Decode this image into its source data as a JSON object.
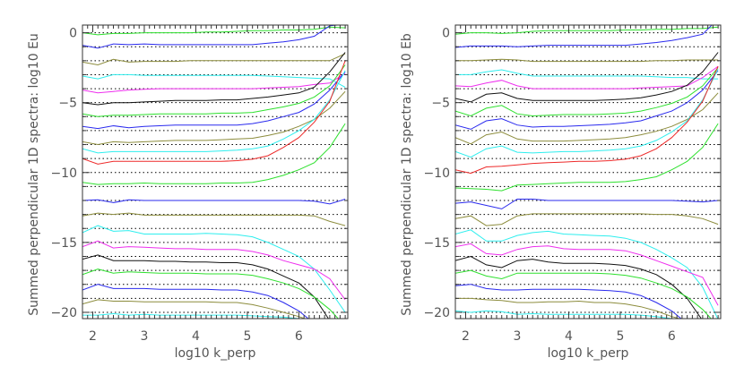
{
  "colors": {
    "green": "#2ee02e",
    "blue": "#2a2aee",
    "olive": "#8c8c3c",
    "cyan": "#2eeeee",
    "magenta": "#ee2eee",
    "black": "#111111",
    "red": "#ee2a2a"
  },
  "chart_data": [
    {
      "type": "line",
      "xlabel": "log10 k_perp",
      "ylabel": "Summed perpendicular 1D spectra: log10 Eu",
      "xlim": [
        1.8,
        6.95
      ],
      "ylim": [
        -20.45,
        0.55
      ],
      "xticks": [
        2,
        3,
        4,
        5,
        6
      ],
      "yticks": [
        0,
        -5,
        -10,
        -15,
        -20
      ],
      "grid": "dotted horizontal at every integer",
      "x": [
        1.8,
        2.1,
        2.4,
        2.7,
        3.0,
        3.3,
        3.6,
        3.9,
        4.2,
        4.5,
        4.8,
        5.1,
        5.4,
        5.7,
        6.0,
        6.3,
        6.6,
        6.9
      ],
      "series": [
        {
          "color": "green",
          "values": [
            0,
            -0.15,
            -0.05,
            -0.05,
            0,
            0,
            0,
            0,
            0.05,
            0.05,
            0.1,
            0.15,
            0.15,
            0.2,
            0.2,
            0.25,
            0.4,
            0.35
          ]
        },
        {
          "color": "blue",
          "values": [
            -0.9,
            -1.1,
            -0.8,
            -0.85,
            -0.8,
            -0.85,
            -0.85,
            -0.85,
            -0.85,
            -0.85,
            -0.85,
            -0.85,
            -0.75,
            -0.65,
            -0.5,
            -0.25,
            0.5,
            0.6
          ]
        },
        {
          "color": "olive",
          "values": [
            -2.1,
            -2.3,
            -1.9,
            -2.1,
            -2.05,
            -2.05,
            -2.05,
            -2,
            -2,
            -2,
            -2,
            -2,
            -2,
            -2,
            -2,
            -2,
            -2,
            -1.5
          ]
        },
        {
          "color": "cyan",
          "values": [
            -3.1,
            -3.3,
            -3,
            -3,
            -3.05,
            -3.05,
            -3.05,
            -3.05,
            -3.05,
            -3.05,
            -3.05,
            -3.05,
            -3.1,
            -3.15,
            -3.2,
            -3.25,
            -3.3,
            -3.9
          ]
        },
        {
          "color": "magenta",
          "values": [
            -4.1,
            -4.3,
            -4.2,
            -4.1,
            -4.05,
            -4,
            -4,
            -4,
            -4,
            -4,
            -4,
            -4,
            -3.95,
            -3.9,
            -3.85,
            -3.7,
            -3.6,
            -2.9
          ]
        },
        {
          "color": "black",
          "values": [
            -5,
            -5.15,
            -5,
            -5,
            -4.95,
            -4.9,
            -4.85,
            -4.85,
            -4.85,
            -4.8,
            -4.8,
            -4.7,
            -4.6,
            -4.45,
            -4.3,
            -3.9,
            -2.8,
            -1.4
          ]
        },
        {
          "color": "green",
          "values": [
            -5.8,
            -6,
            -5.9,
            -5.9,
            -5.85,
            -5.8,
            -5.8,
            -5.8,
            -5.8,
            -5.75,
            -5.75,
            -5.7,
            -5.5,
            -5.3,
            -5.05,
            -4.6,
            -3.8,
            -2.3
          ]
        },
        {
          "color": "blue",
          "values": [
            -6.7,
            -6.85,
            -6.65,
            -6.8,
            -6.7,
            -6.65,
            -6.6,
            -6.6,
            -6.6,
            -6.6,
            -6.6,
            -6.5,
            -6.3,
            -6,
            -5.7,
            -5.1,
            -4.1,
            -2.8
          ]
        },
        {
          "color": "olive",
          "values": [
            -7.8,
            -8,
            -7.8,
            -7.85,
            -7.8,
            -7.75,
            -7.7,
            -7.7,
            -7.7,
            -7.65,
            -7.6,
            -7.55,
            -7.35,
            -7.1,
            -6.7,
            -6.2,
            -5.4,
            -4.2
          ]
        },
        {
          "color": "cyan",
          "values": [
            -8.3,
            -8.6,
            -8.5,
            -8.5,
            -8.5,
            -8.5,
            -8.5,
            -8.5,
            -8.5,
            -8.45,
            -8.4,
            -8.3,
            -8.1,
            -7.6,
            -7,
            -6.2,
            -4.8,
            -2.7
          ]
        },
        {
          "color": "red",
          "values": [
            -9,
            -9.4,
            -9.2,
            -9.2,
            -9.2,
            -9.2,
            -9.2,
            -9.2,
            -9.2,
            -9.2,
            -9.15,
            -9.05,
            -8.8,
            -8.2,
            -7.5,
            -6.4,
            -4.9,
            -2
          ]
        },
        {
          "color": "green",
          "values": [
            -10.7,
            -10.85,
            -10.8,
            -10.8,
            -10.75,
            -10.8,
            -10.8,
            -10.8,
            -10.8,
            -10.75,
            -10.75,
            -10.7,
            -10.5,
            -10.2,
            -9.8,
            -9.3,
            -8.2,
            -6.5
          ]
        },
        {
          "color": "blue",
          "values": [
            -12,
            -11.95,
            -12.15,
            -11.95,
            -12,
            -12,
            -12,
            -12,
            -12,
            -12,
            -12,
            -12,
            -12,
            -12,
            -12,
            -12.05,
            -12.25,
            -11.9
          ]
        },
        {
          "color": "olive",
          "values": [
            -13.1,
            -12.9,
            -13,
            -12.9,
            -13.05,
            -13.05,
            -13.05,
            -13.05,
            -13.05,
            -13.05,
            -13.05,
            -13.05,
            -13.05,
            -13.05,
            -13.05,
            -13.1,
            -13.5,
            -13.8
          ]
        },
        {
          "color": "cyan",
          "values": [
            -14.3,
            -13.8,
            -14.2,
            -14.15,
            -14.4,
            -14.4,
            -14.4,
            -14.4,
            -14.35,
            -14.4,
            -14.45,
            -14.6,
            -15,
            -15.5,
            -16,
            -16.9,
            -18.4,
            -20
          ]
        },
        {
          "color": "magenta",
          "values": [
            -15.3,
            -14.9,
            -15.4,
            -15.3,
            -15.35,
            -15.4,
            -15.45,
            -15.45,
            -15.5,
            -15.5,
            -15.5,
            -15.65,
            -15.9,
            -16.3,
            -16.6,
            -16.9,
            -17.6,
            -19.1
          ]
        },
        {
          "color": "black",
          "values": [
            -16.2,
            -15.9,
            -16.3,
            -16.3,
            -16.3,
            -16.35,
            -16.35,
            -16.4,
            -16.4,
            -16.45,
            -16.45,
            -16.6,
            -16.9,
            -17.4,
            -17.9,
            -18.9,
            -20.6,
            -21.5
          ]
        },
        {
          "color": "green",
          "values": [
            -17.3,
            -16.9,
            -17.2,
            -17.1,
            -17.15,
            -17.2,
            -17.2,
            -17.2,
            -17.25,
            -17.25,
            -17.25,
            -17.35,
            -17.6,
            -17.9,
            -18.3,
            -18.9,
            -19.8,
            -21
          ]
        },
        {
          "color": "blue",
          "values": [
            -18.4,
            -18,
            -18.3,
            -18.3,
            -18.3,
            -18.35,
            -18.35,
            -18.35,
            -18.35,
            -18.4,
            -18.4,
            -18.55,
            -18.8,
            -19.3,
            -19.9,
            -20.8,
            -22,
            -23
          ]
        },
        {
          "color": "olive",
          "values": [
            -19.4,
            -19.1,
            -19.2,
            -19.2,
            -19.25,
            -19.25,
            -19.25,
            -19.25,
            -19.25,
            -19.3,
            -19.3,
            -19.45,
            -19.7,
            -20,
            -20.3,
            -20.7,
            -21.5,
            -22.5
          ]
        },
        {
          "color": "cyan",
          "values": [
            -20.2,
            -20.2,
            -20.1,
            -20.2,
            -20.15,
            -20.2,
            -20.2,
            -20.2,
            -20.2,
            -20.2,
            -20.2,
            -20.25,
            -20.3,
            -20.35,
            -20.45,
            -20.7,
            -21.5,
            -22.5
          ]
        }
      ]
    },
    {
      "type": "line",
      "xlabel": "log10 k_perp",
      "ylabel": "Summed perpendicular 1D spectra: log10 Eb",
      "xlim": [
        1.8,
        6.95
      ],
      "ylim": [
        -20.45,
        0.55
      ],
      "xticks": [
        2,
        3,
        4,
        5,
        6
      ],
      "yticks": [
        0,
        -5,
        -10,
        -15,
        -20
      ],
      "grid": "dotted horizontal at every integer",
      "x": [
        1.8,
        2.1,
        2.4,
        2.7,
        3.0,
        3.3,
        3.6,
        3.9,
        4.2,
        4.5,
        4.8,
        5.1,
        5.4,
        5.7,
        6.0,
        6.3,
        6.6,
        6.9
      ],
      "series": [
        {
          "color": "green",
          "values": [
            -0.1,
            0,
            0,
            -0.05,
            0,
            0.1,
            0.15,
            0.15,
            0.15,
            0.15,
            0.15,
            0.2,
            0.2,
            0.25,
            0.25,
            0.3,
            0.3,
            0.4
          ]
        },
        {
          "color": "blue",
          "values": [
            -1.05,
            -0.95,
            -0.95,
            -0.95,
            -1,
            -0.95,
            -0.9,
            -0.9,
            -0.9,
            -0.9,
            -0.9,
            -0.9,
            -0.8,
            -0.7,
            -0.55,
            -0.35,
            -0.1,
            1
          ]
        },
        {
          "color": "olive",
          "values": [
            -2,
            -2,
            -1.95,
            -1.9,
            -1.95,
            -2.05,
            -2.05,
            -2.05,
            -2.05,
            -2.05,
            -2.05,
            -2.05,
            -2.05,
            -2,
            -2,
            -1.95,
            -1.95,
            -1.95
          ]
        },
        {
          "color": "cyan",
          "values": [
            -3,
            -3,
            -2.8,
            -2.65,
            -2.9,
            -3.1,
            -3.1,
            -3.1,
            -3.1,
            -3.1,
            -3.1,
            -3.1,
            -3.1,
            -3.15,
            -3.2,
            -3.2,
            -3.3,
            -3.3
          ]
        },
        {
          "color": "magenta",
          "values": [
            -3.8,
            -3.85,
            -3.6,
            -3.4,
            -3.8,
            -4,
            -4,
            -4,
            -4,
            -4,
            -4,
            -4,
            -3.95,
            -3.9,
            -3.85,
            -3.8,
            -3.2,
            -2.4
          ]
        },
        {
          "color": "black",
          "values": [
            -4.7,
            -4.95,
            -4.4,
            -4.3,
            -4.7,
            -4.85,
            -4.85,
            -4.85,
            -4.85,
            -4.85,
            -4.8,
            -4.75,
            -4.65,
            -4.45,
            -4.2,
            -3.75,
            -2.8,
            -1.4
          ]
        },
        {
          "color": "green",
          "values": [
            -5.6,
            -5.95,
            -5.4,
            -5.2,
            -5.8,
            -5.95,
            -5.9,
            -5.85,
            -5.85,
            -5.85,
            -5.8,
            -5.75,
            -5.6,
            -5.35,
            -5.05,
            -4.6,
            -3.8,
            -2.5
          ]
        },
        {
          "color": "blue",
          "values": [
            -6.6,
            -6.9,
            -6.3,
            -6.15,
            -6.6,
            -6.75,
            -6.7,
            -6.7,
            -6.65,
            -6.6,
            -6.55,
            -6.45,
            -6.3,
            -5.95,
            -5.6,
            -5,
            -4.1,
            -2.7
          ]
        },
        {
          "color": "olive",
          "values": [
            -7.5,
            -7.95,
            -7.3,
            -7.1,
            -7.6,
            -7.75,
            -7.75,
            -7.75,
            -7.7,
            -7.65,
            -7.6,
            -7.5,
            -7.3,
            -7.05,
            -6.7,
            -6.2,
            -5.5,
            -4.3
          ]
        },
        {
          "color": "cyan",
          "values": [
            -8.5,
            -8.9,
            -8.3,
            -8.1,
            -8.55,
            -8.6,
            -8.55,
            -8.5,
            -8.5,
            -8.45,
            -8.4,
            -8.3,
            -8.1,
            -7.7,
            -7.1,
            -6.3,
            -4.8,
            -2.6
          ]
        },
        {
          "color": "red",
          "values": [
            -9.8,
            -10.05,
            -9.6,
            -9.55,
            -9.45,
            -9.35,
            -9.3,
            -9.25,
            -9.2,
            -9.2,
            -9.15,
            -9.05,
            -8.8,
            -8.3,
            -7.5,
            -6.4,
            -4.9,
            -2.4
          ]
        },
        {
          "color": "green",
          "values": [
            -11.1,
            -11.15,
            -11.2,
            -11.3,
            -10.9,
            -10.85,
            -10.8,
            -10.75,
            -10.7,
            -10.7,
            -10.7,
            -10.65,
            -10.5,
            -10.3,
            -9.8,
            -9.2,
            -8.2,
            -6.5
          ]
        },
        {
          "color": "blue",
          "values": [
            -12.2,
            -12.1,
            -12.35,
            -12.6,
            -11.9,
            -11.9,
            -12,
            -12,
            -12,
            -12,
            -12,
            -12,
            -12,
            -12,
            -12,
            -12.05,
            -12.1,
            -12
          ]
        },
        {
          "color": "olive",
          "values": [
            -13.3,
            -13.1,
            -13.8,
            -13.7,
            -13.1,
            -12.95,
            -12.95,
            -12.95,
            -12.95,
            -12.95,
            -12.95,
            -12.95,
            -12.95,
            -13,
            -13,
            -13.1,
            -13.3,
            -13.7
          ]
        },
        {
          "color": "cyan",
          "values": [
            -14.4,
            -14.1,
            -14.9,
            -14.9,
            -14.5,
            -14.3,
            -14.2,
            -14.4,
            -14.45,
            -14.5,
            -14.55,
            -14.7,
            -15,
            -15.5,
            -16.1,
            -16.8,
            -18.2,
            -20.5
          ]
        },
        {
          "color": "magenta",
          "values": [
            -15.3,
            -15.1,
            -15.8,
            -15.9,
            -15.5,
            -15.3,
            -15.25,
            -15.45,
            -15.5,
            -15.5,
            -15.5,
            -15.6,
            -15.9,
            -16.3,
            -16.7,
            -17.1,
            -17.5,
            -19.5
          ]
        },
        {
          "color": "black",
          "values": [
            -16.3,
            -16,
            -16.6,
            -16.8,
            -16.3,
            -16.2,
            -16.4,
            -16.5,
            -16.5,
            -16.5,
            -16.55,
            -16.65,
            -16.9,
            -17.3,
            -18,
            -19,
            -20.6,
            -21.5
          ]
        },
        {
          "color": "green",
          "values": [
            -17.2,
            -17,
            -17.4,
            -17.6,
            -17.2,
            -17.2,
            -17.2,
            -17.2,
            -17.2,
            -17.2,
            -17.25,
            -17.35,
            -17.55,
            -17.9,
            -18.3,
            -18.9,
            -19.8,
            -21
          ]
        },
        {
          "color": "blue",
          "values": [
            -18.1,
            -18,
            -18.3,
            -18.4,
            -18.4,
            -18.35,
            -18.35,
            -18.35,
            -18.35,
            -18.4,
            -18.45,
            -18.55,
            -18.8,
            -19.3,
            -19.9,
            -20.8,
            -22,
            -23
          ]
        },
        {
          "color": "olive",
          "values": [
            -19,
            -19,
            -19.1,
            -19.15,
            -19.3,
            -19.3,
            -19.25,
            -19.25,
            -19.2,
            -19.3,
            -19.3,
            -19.4,
            -19.6,
            -19.9,
            -20.3,
            -20.6,
            -21.5,
            -22.5
          ]
        },
        {
          "color": "cyan",
          "values": [
            -19.9,
            -20,
            -19.9,
            -19.95,
            -20.15,
            -20.1,
            -20.15,
            -20.15,
            -20.15,
            -20.15,
            -20.15,
            -20.15,
            -20.2,
            -20.3,
            -20.45,
            -20.7,
            -21.5,
            -22.5
          ]
        }
      ]
    }
  ]
}
